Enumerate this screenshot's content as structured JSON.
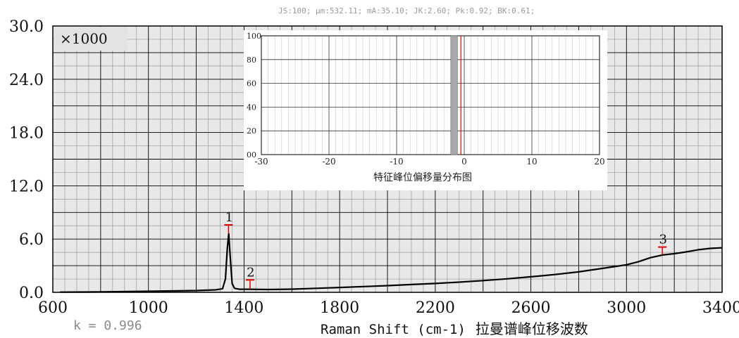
{
  "stats_line": "JS:100; μm:532.11; mA:35.10; JK:2.60; Pk:0.92; BK:0.61;",
  "k_label": "k = 0.996",
  "colors": {
    "curve": "#000000",
    "marker": "#e00000",
    "grid_bg": "#e8e8e8",
    "grid_major": "#000000",
    "grid_minor": "#9a9a9a",
    "inset_bar": "#a8a8a8",
    "inset_line": "#e00000"
  },
  "chart_data": [
    {
      "type": "line",
      "title": "",
      "xlabel": "Raman Shift (cm-1)",
      "xlabel_cn": "拉曼谱峰位移波数",
      "ylabel": "",
      "y_multiplier": "×1000",
      "xlim": [
        600,
        3400
      ],
      "ylim": [
        0,
        30
      ],
      "x_ticks": [
        "600",
        "1000",
        "1400",
        "1800",
        "2200",
        "2600",
        "3000",
        "3400"
      ],
      "y_ticks": [
        "0.0",
        "6.0",
        "12.0",
        "18.0",
        "24.0",
        "30.0"
      ],
      "grid": true,
      "series": [
        {
          "x": [
            630,
            800,
            1000,
            1200,
            1280,
            1310,
            1322,
            1330,
            1336,
            1342,
            1350,
            1360,
            1380,
            1420,
            1500,
            1600,
            1700,
            1800,
            1900,
            2000,
            2100,
            2200,
            2300,
            2400,
            2500,
            2600,
            2700,
            2800,
            2850,
            2900,
            2950,
            3000,
            3050,
            3100,
            3150,
            3200,
            3250,
            3300,
            3350,
            3400
          ],
          "y": [
            0.02,
            0.05,
            0.12,
            0.2,
            0.28,
            0.4,
            1.5,
            5.0,
            6.6,
            4.0,
            1.0,
            0.45,
            0.35,
            0.35,
            0.32,
            0.36,
            0.45,
            0.55,
            0.65,
            0.75,
            0.88,
            1.0,
            1.15,
            1.32,
            1.52,
            1.75,
            2.0,
            2.3,
            2.5,
            2.7,
            2.9,
            3.1,
            3.45,
            3.9,
            4.2,
            4.35,
            4.55,
            4.8,
            4.95,
            5.02
          ]
        }
      ],
      "markers": [
        {
          "label": "1",
          "x": 1335,
          "y_top": 7.6,
          "y_bottom": 6.6
        },
        {
          "label": "2",
          "x": 1425,
          "y_top": 1.4,
          "y_bottom": 0.35
        },
        {
          "label": "3",
          "x": 3150,
          "y_top": 5.1,
          "y_bottom": 4.2
        }
      ]
    },
    {
      "type": "bar",
      "title": "特征峰位偏移量分布图",
      "xlim": [
        -30,
        20
      ],
      "ylim": [
        0,
        100
      ],
      "x_ticks": [
        "-30",
        "-20",
        "-10",
        "0",
        "10",
        "20"
      ],
      "y_ticks": [
        "00",
        "20",
        "40",
        "60",
        "80",
        "100"
      ],
      "grid": true,
      "bars": [
        {
          "x_start": -2.0,
          "x_end": -1.0,
          "value": 100
        }
      ],
      "reference_line_x": -0.5
    }
  ]
}
